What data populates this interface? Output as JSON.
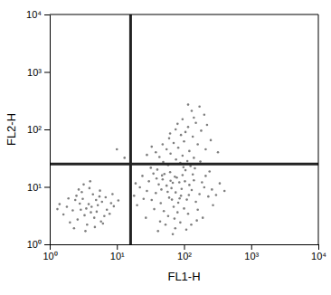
{
  "chart_data": {
    "type": "scatter",
    "x_label": "FL1-H",
    "y_label": "FL2-H",
    "log": true,
    "color": "#7f7f7f",
    "xlim": [
      1,
      10000
    ],
    "ylim": [
      1,
      10000
    ],
    "xticks": [
      {
        "value": 1,
        "label": "10⁰"
      },
      {
        "value": 10,
        "label": "10¹"
      },
      {
        "value": 100,
        "label": "10²"
      },
      {
        "value": 1000,
        "label": "10³"
      },
      {
        "value": 10000,
        "label": "10⁴"
      }
    ],
    "yticks": [
      {
        "value": 1,
        "label": "10⁰"
      },
      {
        "value": 10,
        "label": "10¹"
      },
      {
        "value": 100,
        "label": "10²"
      },
      {
        "value": 1000,
        "label": "10³"
      },
      {
        "value": 10000,
        "label": "10⁴"
      }
    ],
    "quadrant_x": 16,
    "quadrant_y": 25,
    "x": [
      3.5,
      2.8,
      4.1,
      5.2,
      2.2,
      3.1,
      6.0,
      4.6,
      2.6,
      3.8,
      1.8,
      7.1,
      5.5,
      3.3,
      4.4,
      2.4,
      6.5,
      1.6,
      3.0,
      5.8,
      4.9,
      2.0,
      8.2,
      3.6,
      2.9,
      4.2,
      1.4,
      6.8,
      5.0,
      3.9,
      2.5,
      7.8,
      1.9,
      4.7,
      9.0,
      3.2,
      5.6,
      2.3,
      6.2,
      1.3,
      10.5,
      3.4,
      4.0,
      8.6,
      2.7,
      60,
      75,
      45,
      90,
      55,
      110,
      38,
      70,
      130,
      50,
      85,
      65,
      100,
      42,
      150,
      33,
      78,
      120,
      58,
      95,
      28,
      170,
      48,
      72,
      140,
      36,
      62,
      200,
      82,
      105,
      25,
      47,
      160,
      68,
      115,
      40,
      88,
      230,
      30,
      135,
      53,
      185,
      22,
      98,
      74,
      260,
      44,
      125,
      35,
      66,
      80,
      57,
      92,
      118,
      46,
      73,
      103,
      63,
      86,
      51,
      20,
      300,
      155,
      27,
      210,
      39,
      145,
      19,
      340,
      108,
      68,
      41,
      190,
      24,
      270,
      128,
      32,
      240,
      18,
      400,
      58,
      88,
      112,
      76,
      49,
      140,
      95,
      63,
      175,
      43,
      120,
      82,
      55,
      160,
      100,
      70,
      38,
      210,
      135,
      90,
      60,
      180,
      115,
      75,
      250,
      48,
      150,
      95,
      200,
      130,
      170,
      105,
      28,
      320,
      220,
      62,
      140,
      80,
      33,
      115,
      13,
      10
    ],
    "y": [
      4.2,
      5.1,
      3.6,
      4.8,
      3.9,
      6.2,
      5.5,
      2.9,
      2.7,
      5.0,
      4.5,
      4.0,
      6.8,
      3.2,
      7.4,
      5.9,
      3.1,
      3.3,
      8.1,
      2.5,
      5.9,
      2.4,
      5.2,
      2.2,
      4.0,
      4.5,
      5.0,
      6.6,
      3.7,
      9.5,
      7.0,
      3.4,
      6.3,
      2.0,
      4.6,
      11.0,
      8.6,
      1.9,
      2.3,
      4.1,
      5.8,
      1.7,
      12.5,
      7.5,
      9.0,
      6.5,
      8.0,
      5.2,
      7.0,
      10.5,
      6.0,
      7.8,
      4.5,
      8.8,
      3.8,
      12.0,
      9.5,
      4.2,
      11.0,
      5.5,
      5.9,
      14.5,
      10.8,
      3.1,
      16.0,
      8.5,
      7.5,
      13.5,
      2.8,
      13.0,
      4.1,
      18.0,
      9.8,
      5.3,
      19.5,
      6.2,
      15.8,
      4.0,
      11.8,
      3.4,
      20.0,
      2.4,
      6.8,
      12.5,
      16.5,
      2.2,
      12.0,
      9.8,
      22.0,
      1.9,
      9.0,
      2.5,
      23.0,
      17.0,
      6.0,
      3.6,
      8.2,
      9.2,
      7.2,
      9.0,
      15.0,
      12.5,
      12.8,
      6.3,
      16.8,
      4.8,
      7.2,
      2.6,
      2.9,
      15.5,
      14.0,
      21.0,
      11.5,
      11.5,
      1.8,
      1.5,
      1.7,
      2.9,
      15.5,
      4.8,
      2.2,
      21.5,
      18.5,
      7.0,
      8.5,
      24,
      26,
      28,
      30,
      27,
      32,
      35,
      38,
      27.5,
      33,
      42,
      48,
      45,
      55,
      62,
      58,
      40,
      45,
      75,
      80,
      70,
      95,
      110,
      100,
      65,
      55,
      130,
      150,
      180,
      210,
      250,
      90,
      36,
      40,
      120,
      85,
      160,
      125,
      50,
      270,
      32,
      45
    ]
  }
}
